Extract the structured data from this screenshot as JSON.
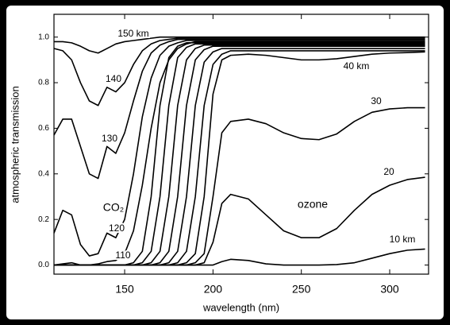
{
  "chart_data": {
    "type": "line",
    "xlabel": "wavelength (nm)",
    "ylabel": "atmospheric transmission",
    "xlim": [
      110,
      322
    ],
    "ylim": [
      -0.04,
      1.1
    ],
    "xticks": [
      150,
      200,
      250,
      300
    ],
    "yticks": [
      {
        "value": 0,
        "label": "0.0"
      },
      0.2,
      0.4,
      0.6,
      0.8,
      {
        "value": 1,
        "label": "1.0"
      }
    ],
    "color": "#000000",
    "x": [
      110,
      115,
      120,
      125,
      130,
      135,
      140,
      145,
      150,
      155,
      160,
      165,
      170,
      175,
      180,
      185,
      190,
      195,
      200,
      205,
      210,
      220,
      230,
      240,
      250,
      260,
      270,
      280,
      290,
      300,
      310,
      320
    ],
    "series": [
      {
        "name": "150 km",
        "values": [
          0.98,
          0.98,
          0.975,
          0.96,
          0.94,
          0.93,
          0.95,
          0.97,
          0.98,
          0.985,
          0.99,
          0.995,
          1,
          1,
          1,
          1,
          1,
          1,
          1,
          1,
          1,
          1,
          1,
          1,
          1,
          1,
          1,
          1,
          1,
          1,
          1,
          1
        ]
      },
      {
        "name": "140",
        "values": [
          0.95,
          0.94,
          0.9,
          0.8,
          0.72,
          0.7,
          0.78,
          0.76,
          0.8,
          0.88,
          0.94,
          0.97,
          0.985,
          0.99,
          0.995,
          0.995,
          0.995,
          0.995,
          0.995,
          0.995,
          0.995,
          0.995,
          0.995,
          0.995,
          0.995,
          0.995,
          0.995,
          0.995,
          0.995,
          0.995,
          0.995,
          0.995
        ]
      },
      {
        "name": "130",
        "values": [
          0.57,
          0.64,
          0.64,
          0.52,
          0.4,
          0.38,
          0.52,
          0.49,
          0.58,
          0.72,
          0.85,
          0.93,
          0.965,
          0.98,
          0.99,
          0.99,
          0.99,
          0.99,
          0.99,
          0.99,
          0.99,
          0.99,
          0.99,
          0.99,
          0.99,
          0.99,
          0.99,
          0.99,
          0.99,
          0.99,
          0.99,
          0.99
        ]
      },
      {
        "name": "120",
        "values": [
          0.14,
          0.24,
          0.22,
          0.09,
          0.04,
          0.05,
          0.14,
          0.12,
          0.2,
          0.4,
          0.65,
          0.82,
          0.92,
          0.96,
          0.975,
          0.985,
          0.985,
          0.985,
          0.985,
          0.985,
          0.985,
          0.985,
          0.985,
          0.985,
          0.985,
          0.985,
          0.985,
          0.985,
          0.985,
          0.985,
          0.985,
          0.985
        ]
      },
      {
        "name": "110",
        "values": [
          0,
          0.005,
          0.01,
          0,
          0,
          0.005,
          0.015,
          0.02,
          0.05,
          0.15,
          0.35,
          0.6,
          0.8,
          0.9,
          0.95,
          0.97,
          0.98,
          0.98,
          0.98,
          0.98,
          0.98,
          0.98,
          0.98,
          0.98,
          0.98,
          0.98,
          0.98,
          0.98,
          0.98,
          0.98,
          0.98,
          0.98
        ]
      },
      {
        "values": [
          0,
          0,
          0,
          0,
          0,
          0,
          0,
          0,
          0,
          0.01,
          0.06,
          0.3,
          0.7,
          0.91,
          0.96,
          0.975,
          0.975,
          0.975,
          0.975,
          0.975,
          0.975,
          0.975,
          0.975,
          0.975,
          0.975,
          0.975,
          0.975,
          0.975,
          0.975,
          0.975,
          0.975,
          0.975
        ]
      },
      {
        "values": [
          0,
          0,
          0,
          0,
          0,
          0,
          0,
          0,
          0,
          0,
          0.01,
          0.06,
          0.3,
          0.7,
          0.91,
          0.955,
          0.97,
          0.97,
          0.97,
          0.97,
          0.97,
          0.97,
          0.97,
          0.97,
          0.97,
          0.97,
          0.97,
          0.97,
          0.97,
          0.97,
          0.97,
          0.97
        ]
      },
      {
        "values": [
          0,
          0,
          0,
          0,
          0,
          0,
          0,
          0,
          0,
          0,
          0,
          0.01,
          0.06,
          0.3,
          0.7,
          0.9,
          0.95,
          0.965,
          0.965,
          0.965,
          0.965,
          0.965,
          0.965,
          0.965,
          0.965,
          0.965,
          0.965,
          0.965,
          0.965,
          0.965,
          0.965,
          0.965
        ]
      },
      {
        "values": [
          0,
          0,
          0,
          0,
          0,
          0,
          0,
          0,
          0,
          0,
          0,
          0,
          0.01,
          0.06,
          0.3,
          0.7,
          0.9,
          0.945,
          0.96,
          0.96,
          0.96,
          0.96,
          0.96,
          0.96,
          0.96,
          0.96,
          0.96,
          0.96,
          0.96,
          0.96,
          0.96,
          0.96
        ]
      },
      {
        "values": [
          0,
          0,
          0,
          0,
          0,
          0,
          0,
          0,
          0,
          0,
          0,
          0,
          0,
          0.01,
          0.06,
          0.3,
          0.7,
          0.89,
          0.935,
          0.95,
          0.95,
          0.95,
          0.95,
          0.95,
          0.95,
          0.95,
          0.95,
          0.95,
          0.95,
          0.95,
          0.95,
          0.95
        ]
      },
      {
        "values": [
          0,
          0,
          0,
          0,
          0,
          0,
          0,
          0,
          0,
          0,
          0,
          0,
          0,
          0,
          0.01,
          0.06,
          0.3,
          0.7,
          0.88,
          0.925,
          0.94,
          0.94,
          0.94,
          0.94,
          0.94,
          0.94,
          0.94,
          0.94,
          0.94,
          0.94,
          0.94,
          0.94
        ]
      },
      {
        "name": "40 km",
        "values": [
          0,
          0,
          0,
          0,
          0,
          0,
          0,
          0,
          0,
          0,
          0,
          0,
          0,
          0,
          0,
          0.01,
          0.05,
          0.3,
          0.75,
          0.9,
          0.92,
          0.925,
          0.92,
          0.91,
          0.9,
          0.9,
          0.905,
          0.915,
          0.925,
          0.93,
          0.932,
          0.935
        ]
      },
      {
        "name": "30",
        "values": [
          0,
          0,
          0,
          0,
          0,
          0,
          0,
          0,
          0,
          0,
          0,
          0,
          0,
          0,
          0,
          0,
          0.01,
          0.05,
          0.3,
          0.58,
          0.63,
          0.64,
          0.62,
          0.58,
          0.555,
          0.55,
          0.575,
          0.63,
          0.67,
          0.685,
          0.69,
          0.69
        ]
      },
      {
        "name": "20",
        "values": [
          0,
          0,
          0,
          0,
          0,
          0,
          0,
          0,
          0,
          0,
          0,
          0,
          0,
          0,
          0,
          0,
          0,
          0.01,
          0.1,
          0.27,
          0.31,
          0.29,
          0.22,
          0.15,
          0.12,
          0.12,
          0.16,
          0.24,
          0.31,
          0.35,
          0.375,
          0.385
        ]
      },
      {
        "name": "10 km",
        "values": [
          0,
          0,
          0,
          0,
          0,
          0,
          0,
          0,
          0,
          0,
          0,
          0,
          0,
          0,
          0,
          0,
          0,
          0,
          0,
          0.015,
          0.025,
          0.02,
          0.005,
          0,
          0,
          0,
          0.002,
          0.01,
          0.03,
          0.05,
          0.065,
          0.07
        ]
      }
    ],
    "annotations": [
      "CO₂",
      "ozone"
    ]
  }
}
